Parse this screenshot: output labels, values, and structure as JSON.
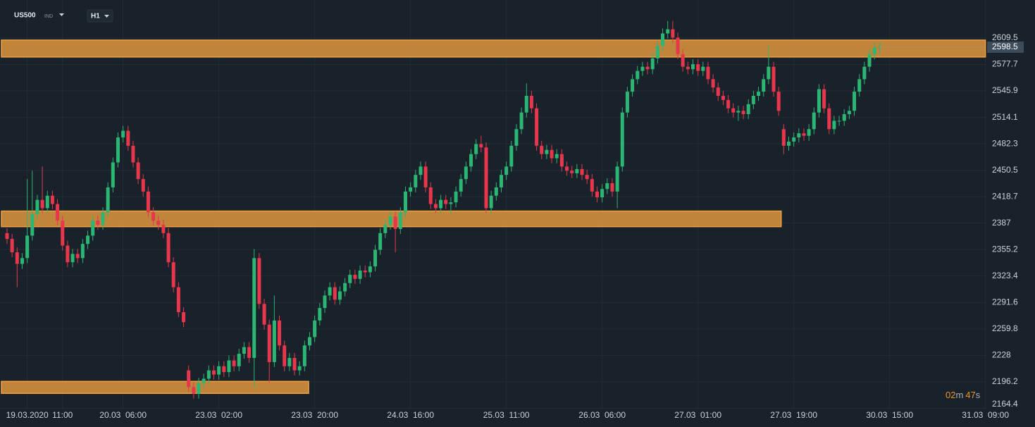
{
  "header": {
    "symbol": "US500",
    "market": "IND",
    "timeframe": "H1"
  },
  "timer": [
    "02",
    "m",
    "47",
    "s"
  ],
  "chart_data": {
    "type": "candlestick",
    "up_color": "#2bb673",
    "down_color": "#e8364d",
    "zone_color": "#f0a040",
    "grid": true,
    "ylim": [
      2164.0,
      2655.2
    ],
    "yticks": [
      2609.5,
      2577.7,
      2545.9,
      2514.1,
      2482.3,
      2450.5,
      2418.7,
      2387.0,
      2355.2,
      2323.4,
      2291.6,
      2259.8,
      2228.0,
      2196.2,
      2164.4
    ],
    "xticks": [
      {
        "value": 4,
        "label": "19.03.2020"
      },
      {
        "value": 11,
        "label": "11:00"
      },
      {
        "value": 23,
        "label": "20.03  06:00"
      },
      {
        "value": 42,
        "label": "23.03  02:00"
      },
      {
        "value": 61,
        "label": "23.03  20:00"
      },
      {
        "value": 80,
        "label": "24.03  16:00"
      },
      {
        "value": 99,
        "label": "25.03  11:00"
      },
      {
        "value": 118,
        "label": "26.03  06:00"
      },
      {
        "value": 137,
        "label": "27.03  01:00"
      },
      {
        "value": 156,
        "label": "27.03  19:00"
      },
      {
        "value": 175,
        "label": "30.03  15:00"
      },
      {
        "value": 194,
        "label": "31.03  09:00"
      }
    ],
    "zones": [
      {
        "low": 2586.7,
        "high": 2607.0,
        "end": 194
      },
      {
        "low": 2382.8,
        "high": 2401.5,
        "end": 153.5
      },
      {
        "low": 2182.4,
        "high": 2196.8,
        "end": 59.8
      }
    ],
    "candles": {
      "open": [
        2375,
        2368,
        2352,
        2338,
        2345,
        2372,
        2398,
        2415,
        2405,
        2420,
        2410,
        2390,
        2360,
        2340,
        2350,
        2345,
        2362,
        2372,
        2390,
        2385,
        2400,
        2430,
        2460,
        2490,
        2498,
        2480,
        2460,
        2440,
        2425,
        2400,
        2390,
        2385,
        2375,
        2340,
        2310,
        2280,
        2210,
        2190,
        2182,
        2195,
        2200,
        2210,
        2205,
        2215,
        2208,
        2222,
        2215,
        2230,
        2238,
        2225,
        2345,
        2290,
        2265,
        2220,
        2270,
        2240,
        2215,
        2225,
        2210,
        2215,
        2240,
        2250,
        2270,
        2285,
        2300,
        2310,
        2295,
        2305,
        2315,
        2325,
        2320,
        2330,
        2328,
        2335,
        2355,
        2375,
        2385,
        2395,
        2380,
        2400,
        2425,
        2430,
        2445,
        2455,
        2430,
        2410,
        2405,
        2415,
        2410,
        2412,
        2425,
        2440,
        2455,
        2470,
        2482,
        2478,
        2405,
        2420,
        2430,
        2445,
        2455,
        2480,
        2500,
        2520,
        2540,
        2525,
        2480,
        2470,
        2475,
        2465,
        2470,
        2455,
        2450,
        2447,
        2452,
        2445,
        2440,
        2425,
        2418,
        2428,
        2435,
        2425,
        2455,
        2520,
        2545,
        2560,
        2570,
        2575,
        2572,
        2585,
        2600,
        2615,
        2620,
        2610,
        2590,
        2575,
        2572,
        2578,
        2570,
        2575,
        2560,
        2550,
        2540,
        2535,
        2525,
        2520,
        2522,
        2518,
        2530,
        2540,
        2545,
        2560,
        2575,
        2545,
        2500,
        2480,
        2485,
        2490,
        2495,
        2492,
        2500,
        2520,
        2548,
        2525,
        2500,
        2510,
        2510,
        2518,
        2522,
        2545,
        2560,
        2575,
        2590,
        2598
      ],
      "high": [
        2381,
        2374,
        2358,
        2351,
        2440,
        2450,
        2421,
        2455,
        2426,
        2426,
        2416,
        2396,
        2366,
        2356,
        2356,
        2368,
        2378,
        2396,
        2396,
        2406,
        2436,
        2466,
        2496,
        2504,
        2504,
        2486,
        2466,
        2446,
        2431,
        2406,
        2396,
        2391,
        2381,
        2346,
        2316,
        2286,
        2216,
        2196,
        2201,
        2206,
        2216,
        2216,
        2221,
        2221,
        2228,
        2228,
        2236,
        2244,
        2244,
        2356,
        2351,
        2296,
        2271,
        2300,
        2276,
        2246,
        2231,
        2231,
        2221,
        2246,
        2256,
        2276,
        2291,
        2306,
        2316,
        2316,
        2311,
        2321,
        2331,
        2331,
        2336,
        2336,
        2341,
        2361,
        2381,
        2391,
        2401,
        2401,
        2406,
        2431,
        2436,
        2451,
        2461,
        2461,
        2436,
        2416,
        2421,
        2421,
        2418,
        2431,
        2446,
        2461,
        2476,
        2488,
        2492,
        2484,
        2426,
        2436,
        2451,
        2461,
        2486,
        2506,
        2526,
        2555,
        2546,
        2531,
        2486,
        2481,
        2481,
        2476,
        2476,
        2461,
        2456,
        2458,
        2458,
        2451,
        2446,
        2431,
        2434,
        2441,
        2441,
        2461,
        2526,
        2551,
        2566,
        2576,
        2581,
        2581,
        2591,
        2606,
        2621,
        2630,
        2630,
        2616,
        2596,
        2581,
        2584,
        2584,
        2581,
        2581,
        2566,
        2556,
        2546,
        2541,
        2531,
        2528,
        2528,
        2536,
        2546,
        2551,
        2566,
        2600,
        2581,
        2551,
        2506,
        2491,
        2496,
        2501,
        2501,
        2506,
        2526,
        2554,
        2554,
        2531,
        2516,
        2516,
        2524,
        2528,
        2551,
        2566,
        2581,
        2596,
        2604,
        2604
      ],
      "low": [
        2362,
        2346,
        2310,
        2332,
        2339,
        2366,
        2392,
        2399,
        2399,
        2404,
        2384,
        2354,
        2334,
        2334,
        2339,
        2339,
        2356,
        2366,
        2379,
        2379,
        2394,
        2424,
        2454,
        2484,
        2474,
        2454,
        2434,
        2419,
        2394,
        2384,
        2379,
        2369,
        2334,
        2304,
        2274,
        2262,
        2184,
        2176,
        2176,
        2189,
        2194,
        2199,
        2199,
        2202,
        2202,
        2209,
        2209,
        2224,
        2219,
        2190,
        2284,
        2259,
        2195,
        2214,
        2234,
        2209,
        2209,
        2204,
        2204,
        2209,
        2234,
        2244,
        2264,
        2279,
        2294,
        2289,
        2289,
        2299,
        2309,
        2314,
        2314,
        2322,
        2322,
        2329,
        2349,
        2369,
        2379,
        2352,
        2374,
        2394,
        2419,
        2424,
        2439,
        2424,
        2404,
        2399,
        2399,
        2404,
        2398,
        2406,
        2419,
        2434,
        2449,
        2464,
        2472,
        2399,
        2399,
        2414,
        2424,
        2439,
        2449,
        2474,
        2494,
        2514,
        2519,
        2474,
        2464,
        2464,
        2459,
        2459,
        2449,
        2444,
        2441,
        2441,
        2439,
        2434,
        2419,
        2412,
        2412,
        2422,
        2419,
        2405,
        2449,
        2514,
        2539,
        2554,
        2564,
        2566,
        2566,
        2579,
        2594,
        2609,
        2604,
        2584,
        2569,
        2566,
        2566,
        2564,
        2564,
        2554,
        2544,
        2534,
        2529,
        2519,
        2514,
        2510,
        2512,
        2512,
        2524,
        2534,
        2539,
        2554,
        2539,
        2516,
        2470,
        2474,
        2479,
        2484,
        2486,
        2486,
        2494,
        2514,
        2519,
        2494,
        2494,
        2504,
        2504,
        2512,
        2516,
        2539,
        2554,
        2569,
        2584,
        2590
      ],
      "close": [
        2368,
        2352,
        2338,
        2345,
        2372,
        2398,
        2415,
        2405,
        2420,
        2410,
        2390,
        2360,
        2340,
        2350,
        2345,
        2362,
        2372,
        2390,
        2385,
        2400,
        2430,
        2460,
        2490,
        2498,
        2480,
        2460,
        2440,
        2425,
        2400,
        2390,
        2385,
        2375,
        2340,
        2310,
        2280,
        2268,
        2190,
        2182,
        2195,
        2200,
        2210,
        2205,
        2215,
        2208,
        2222,
        2215,
        2230,
        2238,
        2225,
        2345,
        2290,
        2265,
        2220,
        2270,
        2240,
        2215,
        2225,
        2210,
        2215,
        2240,
        2250,
        2270,
        2285,
        2300,
        2310,
        2295,
        2305,
        2315,
        2325,
        2320,
        2330,
        2328,
        2335,
        2355,
        2375,
        2385,
        2395,
        2380,
        2400,
        2425,
        2430,
        2445,
        2455,
        2430,
        2410,
        2405,
        2415,
        2410,
        2412,
        2425,
        2440,
        2455,
        2470,
        2482,
        2478,
        2405,
        2420,
        2430,
        2445,
        2455,
        2480,
        2500,
        2520,
        2540,
        2525,
        2480,
        2470,
        2475,
        2465,
        2470,
        2455,
        2450,
        2447,
        2452,
        2445,
        2440,
        2425,
        2418,
        2428,
        2435,
        2425,
        2455,
        2520,
        2545,
        2560,
        2570,
        2575,
        2572,
        2585,
        2600,
        2615,
        2620,
        2610,
        2590,
        2575,
        2572,
        2578,
        2570,
        2575,
        2560,
        2550,
        2540,
        2535,
        2525,
        2520,
        2522,
        2518,
        2530,
        2540,
        2545,
        2560,
        2575,
        2545,
        2522,
        2480,
        2485,
        2490,
        2495,
        2492,
        2500,
        2520,
        2548,
        2525,
        2500,
        2510,
        2510,
        2518,
        2522,
        2545,
        2560,
        2575,
        2590,
        2598,
        2598.5
      ]
    }
  }
}
